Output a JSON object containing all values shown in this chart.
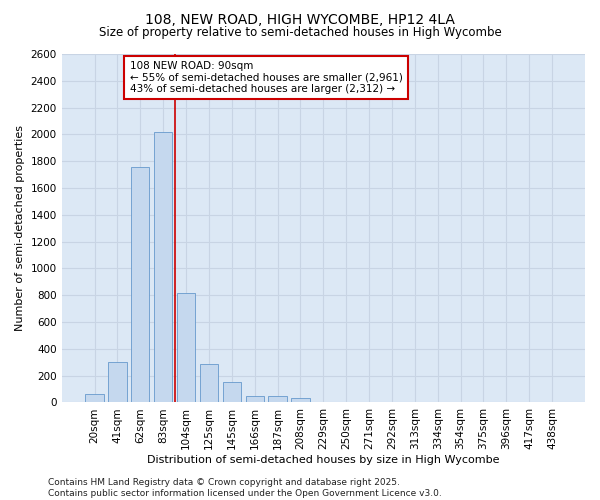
{
  "title": "108, NEW ROAD, HIGH WYCOMBE, HP12 4LA",
  "subtitle": "Size of property relative to semi-detached houses in High Wycombe",
  "xlabel": "Distribution of semi-detached houses by size in High Wycombe",
  "ylabel": "Number of semi-detached properties",
  "categories": [
    "20sqm",
    "41sqm",
    "62sqm",
    "83sqm",
    "104sqm",
    "125sqm",
    "145sqm",
    "166sqm",
    "187sqm",
    "208sqm",
    "229sqm",
    "250sqm",
    "271sqm",
    "292sqm",
    "313sqm",
    "334sqm",
    "354sqm",
    "375sqm",
    "396sqm",
    "417sqm",
    "438sqm"
  ],
  "values": [
    60,
    300,
    1760,
    2020,
    820,
    290,
    155,
    50,
    45,
    35,
    0,
    0,
    0,
    0,
    0,
    0,
    0,
    0,
    0,
    0,
    0
  ],
  "bar_color": "#c5d8ee",
  "bar_edge_color": "#6699cc",
  "vline_color": "#cc0000",
  "vline_x": 3.5,
  "annotation_text": "108 NEW ROAD: 90sqm\n← 55% of semi-detached houses are smaller (2,961)\n43% of semi-detached houses are larger (2,312) →",
  "annotation_box_facecolor": "#ffffff",
  "annotation_box_edgecolor": "#cc0000",
  "ylim": [
    0,
    2600
  ],
  "yticks": [
    0,
    200,
    400,
    600,
    800,
    1000,
    1200,
    1400,
    1600,
    1800,
    2000,
    2200,
    2400,
    2600
  ],
  "grid_color": "#c8d4e4",
  "plot_bg_color": "#dce8f5",
  "title_fontsize": 10,
  "subtitle_fontsize": 8.5,
  "axis_label_fontsize": 8,
  "tick_fontsize": 7.5,
  "annot_fontsize": 7.5,
  "footer_text": "Contains HM Land Registry data © Crown copyright and database right 2025.\nContains public sector information licensed under the Open Government Licence v3.0.",
  "footer_fontsize": 6.5
}
